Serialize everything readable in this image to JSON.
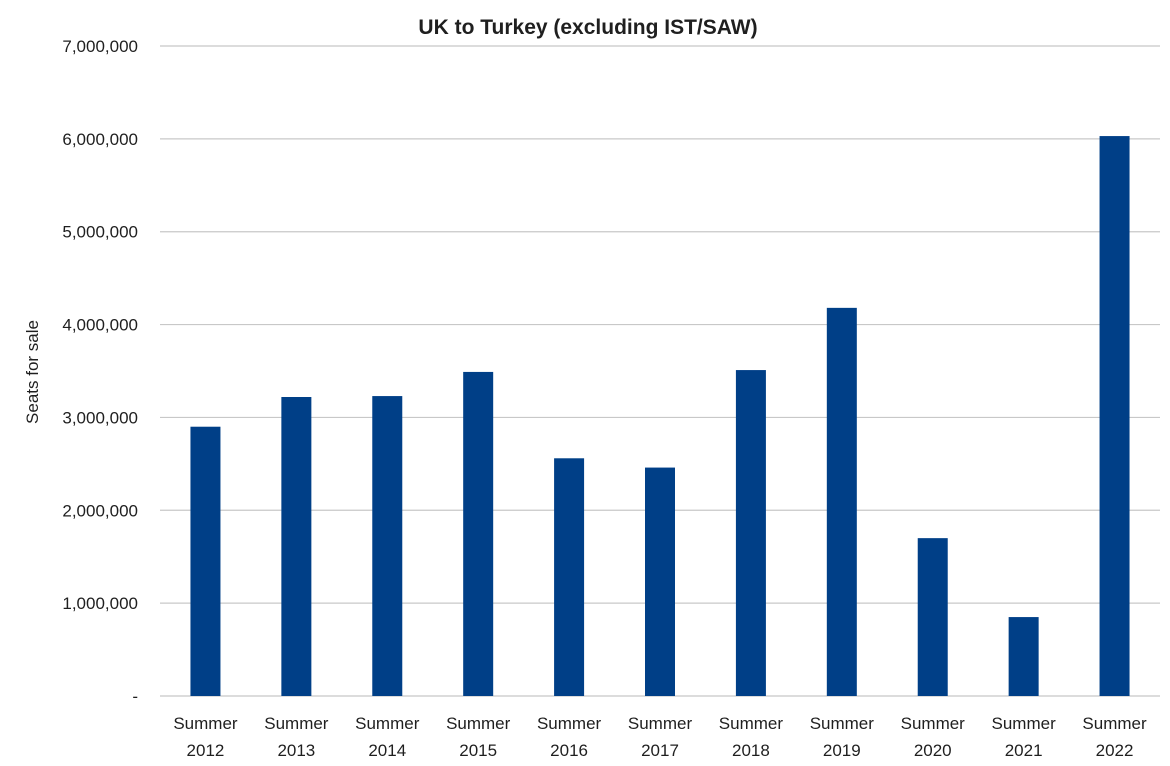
{
  "chart_data": {
    "type": "bar",
    "title": "UK to Turkey (excluding IST/SAW)",
    "xlabel": "",
    "ylabel": "Seats for sale",
    "ylim": [
      0,
      7000000
    ],
    "y_ticks": [
      0,
      1000000,
      2000000,
      3000000,
      4000000,
      5000000,
      6000000,
      7000000
    ],
    "y_tick_labels": [
      "-",
      "1,000,000",
      "2,000,000",
      "3,000,000",
      "4,000,000",
      "5,000,000",
      "6,000,000",
      "7,000,000"
    ],
    "grid": true,
    "legend": "none",
    "bar_color": "#003F87",
    "grid_color": "#c8c8c8",
    "categories": [
      [
        "Summer",
        "2012"
      ],
      [
        "Summer",
        "2013"
      ],
      [
        "Summer",
        "2014"
      ],
      [
        "Summer",
        "2015"
      ],
      [
        "Summer",
        "2016"
      ],
      [
        "Summer",
        "2017"
      ],
      [
        "Summer",
        "2018"
      ],
      [
        "Summer",
        "2019"
      ],
      [
        "Summer",
        "2020"
      ],
      [
        "Summer",
        "2021"
      ],
      [
        "Summer",
        "2022"
      ]
    ],
    "values": [
      2900000,
      3220000,
      3230000,
      3490000,
      2560000,
      2460000,
      3510000,
      4180000,
      1700000,
      850000,
      6030000
    ]
  }
}
